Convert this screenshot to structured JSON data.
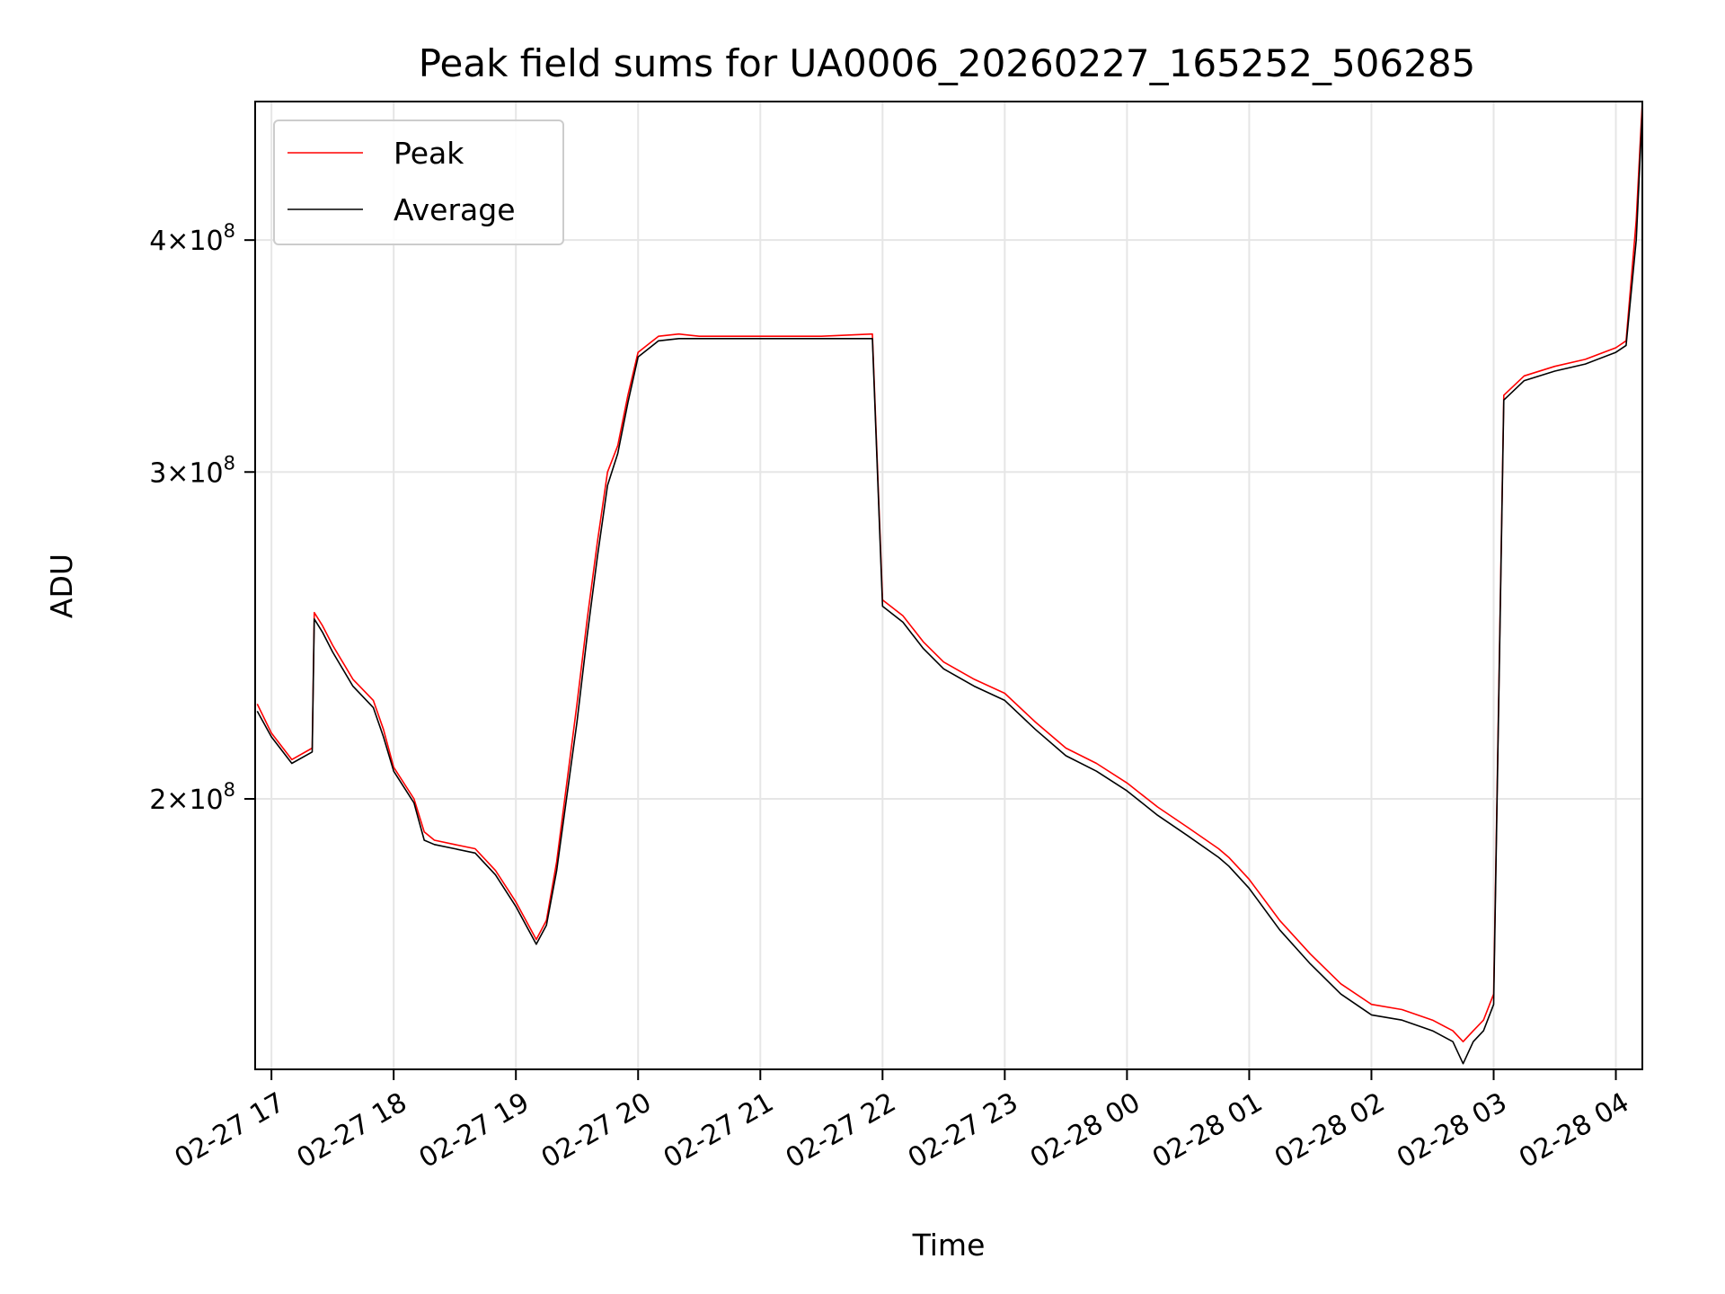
{
  "chart_data": {
    "type": "line",
    "title": "Peak field sums for UA0006_20260227_165252_506285",
    "xlabel": "Time",
    "ylabel": "ADU",
    "x_ticks": [
      "02-27 17",
      "02-27 18",
      "02-27 19",
      "02-27 20",
      "02-27 21",
      "02-27 22",
      "02-27 23",
      "02-28 00",
      "02-28 01",
      "02-28 02",
      "02-28 03",
      "02-28 04"
    ],
    "y_ticks": [
      {
        "value": 200000000,
        "mantissa": "2",
        "exponent": "8"
      },
      {
        "value": 300000000,
        "mantissa": "3",
        "exponent": "8"
      },
      {
        "value": 400000000,
        "mantissa": "4",
        "exponent": "8"
      }
    ],
    "xlim": [
      "2026-02-27 16:52",
      "2026-02-28 04:13"
    ],
    "ylim": [
      143000000,
      475000000
    ],
    "y_scale": "log",
    "grid": true,
    "legend_position": "upper-left",
    "series": [
      {
        "name": "Peak",
        "color": "#ff0000",
        "x": [
          "2026-02-27 16:53",
          "2026-02-27 17:00",
          "2026-02-27 17:10",
          "2026-02-27 17:20",
          "2026-02-27 17:21",
          "2026-02-27 17:25",
          "2026-02-27 17:30",
          "2026-02-27 17:40",
          "2026-02-27 17:50",
          "2026-02-27 17:55",
          "2026-02-27 18:00",
          "2026-02-27 18:10",
          "2026-02-27 18:15",
          "2026-02-27 18:20",
          "2026-02-27 18:30",
          "2026-02-27 18:40",
          "2026-02-27 18:50",
          "2026-02-27 19:00",
          "2026-02-27 19:10",
          "2026-02-27 19:15",
          "2026-02-27 19:20",
          "2026-02-27 19:30",
          "2026-02-27 19:35",
          "2026-02-27 19:40",
          "2026-02-27 19:45",
          "2026-02-27 19:50",
          "2026-02-27 19:55",
          "2026-02-27 20:00",
          "2026-02-27 20:10",
          "2026-02-27 20:20",
          "2026-02-27 20:30",
          "2026-02-27 20:40",
          "2026-02-27 21:00",
          "2026-02-27 21:30",
          "2026-02-27 21:55",
          "2026-02-27 22:00",
          "2026-02-27 22:10",
          "2026-02-27 22:20",
          "2026-02-27 22:30",
          "2026-02-27 22:45",
          "2026-02-27 23:00",
          "2026-02-27 23:15",
          "2026-02-27 23:30",
          "2026-02-27 23:45",
          "2026-02-28 00:00",
          "2026-02-28 00:15",
          "2026-02-28 00:30",
          "2026-02-28 00:45",
          "2026-02-28 00:50",
          "2026-02-28 01:00",
          "2026-02-28 01:15",
          "2026-02-28 01:30",
          "2026-02-28 01:45",
          "2026-02-28 02:00",
          "2026-02-28 02:15",
          "2026-02-28 02:30",
          "2026-02-28 02:40",
          "2026-02-28 02:45",
          "2026-02-28 02:50",
          "2026-02-28 02:55",
          "2026-02-28 03:00",
          "2026-02-28 03:05",
          "2026-02-28 03:15",
          "2026-02-28 03:30",
          "2026-02-28 03:45",
          "2026-02-28 04:00",
          "2026-02-28 04:05",
          "2026-02-28 04:10",
          "2026-02-28 04:13"
        ],
        "values": [
          225,
          217,
          210,
          213,
          252,
          248,
          242,
          232,
          226,
          218,
          208,
          200,
          192,
          190,
          189,
          188,
          183,
          176,
          168,
          172,
          185,
          225,
          250,
          275,
          300,
          310,
          330,
          348,
          355,
          356,
          355,
          355,
          355,
          355,
          356,
          256,
          251,
          243,
          237,
          232,
          228,
          220,
          213,
          209,
          204,
          198,
          193,
          188,
          186,
          181,
          172,
          165,
          159,
          155,
          154,
          152,
          150,
          148,
          150,
          152,
          157,
          330,
          338,
          342,
          345,
          350,
          353,
          410,
          475
        ]
      },
      {
        "name": "Average",
        "color": "#000000",
        "x": [
          "2026-02-27 16:53",
          "2026-02-27 17:00",
          "2026-02-27 17:10",
          "2026-02-27 17:20",
          "2026-02-27 17:21",
          "2026-02-27 17:25",
          "2026-02-27 17:30",
          "2026-02-27 17:40",
          "2026-02-27 17:50",
          "2026-02-27 17:55",
          "2026-02-27 18:00",
          "2026-02-27 18:10",
          "2026-02-27 18:15",
          "2026-02-27 18:20",
          "2026-02-27 18:30",
          "2026-02-27 18:40",
          "2026-02-27 18:50",
          "2026-02-27 19:00",
          "2026-02-27 19:10",
          "2026-02-27 19:15",
          "2026-02-27 19:20",
          "2026-02-27 19:30",
          "2026-02-27 19:35",
          "2026-02-27 19:40",
          "2026-02-27 19:45",
          "2026-02-27 19:50",
          "2026-02-27 19:55",
          "2026-02-27 20:00",
          "2026-02-27 20:10",
          "2026-02-27 20:20",
          "2026-02-27 20:30",
          "2026-02-27 20:40",
          "2026-02-27 21:00",
          "2026-02-27 21:30",
          "2026-02-27 21:55",
          "2026-02-27 22:00",
          "2026-02-27 22:10",
          "2026-02-27 22:20",
          "2026-02-27 22:30",
          "2026-02-27 22:45",
          "2026-02-27 23:00",
          "2026-02-27 23:15",
          "2026-02-27 23:30",
          "2026-02-27 23:45",
          "2026-02-28 00:00",
          "2026-02-28 00:15",
          "2026-02-28 00:30",
          "2026-02-28 00:45",
          "2026-02-28 00:50",
          "2026-02-28 01:00",
          "2026-02-28 01:15",
          "2026-02-28 01:30",
          "2026-02-28 01:45",
          "2026-02-28 02:00",
          "2026-02-28 02:15",
          "2026-02-28 02:30",
          "2026-02-28 02:40",
          "2026-02-28 02:45",
          "2026-02-28 02:50",
          "2026-02-28 02:55",
          "2026-02-28 03:00",
          "2026-02-28 03:05",
          "2026-02-28 03:15",
          "2026-02-28 03:30",
          "2026-02-28 03:45",
          "2026-02-28 04:00",
          "2026-02-28 04:05",
          "2026-02-28 04:10",
          "2026-02-28 04:13"
        ],
        "values": [
          223,
          216,
          209,
          212,
          250,
          246,
          240,
          230,
          224,
          216,
          207,
          199,
          190,
          189,
          188,
          187,
          182,
          175,
          167,
          171,
          183,
          220,
          245,
          270,
          295,
          307,
          327,
          346,
          353,
          354,
          354,
          354,
          354,
          354,
          354,
          254,
          249,
          241,
          235,
          230,
          226,
          218,
          211,
          207,
          202,
          196,
          191,
          186,
          184,
          179,
          170,
          163,
          157,
          153,
          152,
          150,
          148,
          144,
          148,
          150,
          155,
          328,
          336,
          340,
          343,
          348,
          351,
          400,
          470
        ]
      }
    ]
  }
}
